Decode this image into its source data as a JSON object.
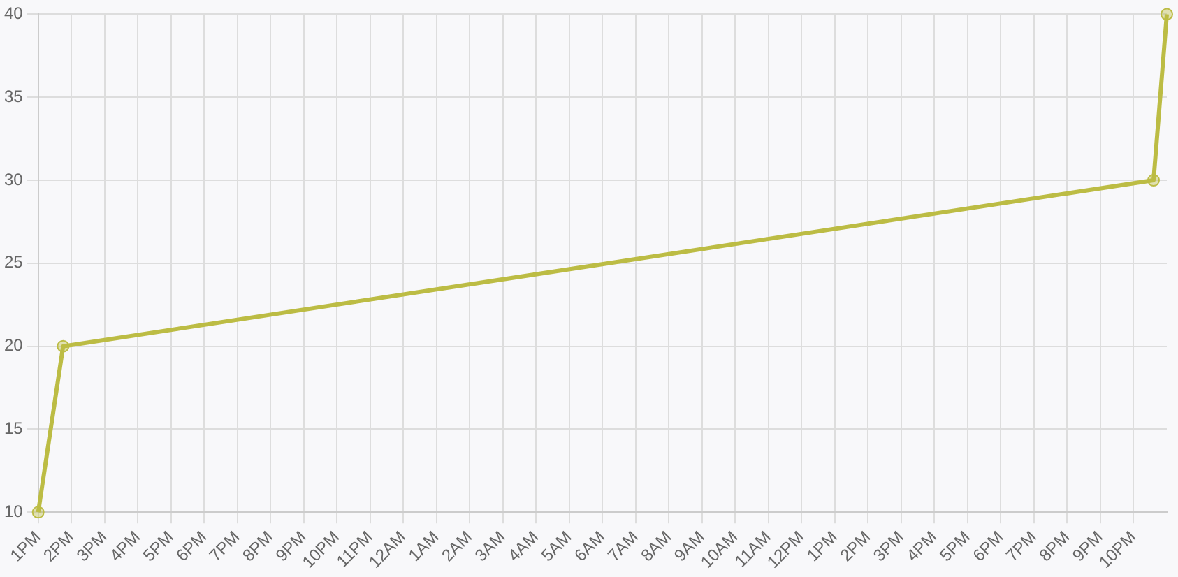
{
  "chart_data": {
    "type": "line",
    "series": [
      {
        "color": "#bcbc44",
        "x": [
          "--01-01T13:00",
          "--01-01T13:45",
          "--01-02T22:36",
          "--01-02T23:00"
        ],
        "values": [
          10,
          20,
          30,
          40
        ]
      }
    ],
    "xlim": [
      "--01-01T13:00",
      "--01-02T23:00"
    ],
    "xticks": [
      {
        "value": "--01-01T13:00",
        "label": "1PM"
      },
      {
        "value": "--01-01T14:00",
        "label": "2PM"
      },
      {
        "value": "--01-01T15:00",
        "label": "3PM"
      },
      {
        "value": "--01-01T16:00",
        "label": "4PM"
      },
      {
        "value": "--01-01T17:00",
        "label": "5PM"
      },
      {
        "value": "--01-01T18:00",
        "label": "6PM"
      },
      {
        "value": "--01-01T19:00",
        "label": "7PM"
      },
      {
        "value": "--01-01T20:00",
        "label": "8PM"
      },
      {
        "value": "--01-01T21:00",
        "label": "9PM"
      },
      {
        "value": "--01-01T22:00",
        "label": "10PM"
      },
      {
        "value": "--01-01T23:00",
        "label": "11PM"
      },
      {
        "value": "--01-02T00:00",
        "label": "12AM"
      },
      {
        "value": "--01-02T01:00",
        "label": "1AM"
      },
      {
        "value": "--01-02T02:00",
        "label": "2AM"
      },
      {
        "value": "--01-02T03:00",
        "label": "3AM"
      },
      {
        "value": "--01-02T04:00",
        "label": "4AM"
      },
      {
        "value": "--01-02T05:00",
        "label": "5AM"
      },
      {
        "value": "--01-02T06:00",
        "label": "6AM"
      },
      {
        "value": "--01-02T07:00",
        "label": "7AM"
      },
      {
        "value": "--01-02T08:00",
        "label": "8AM"
      },
      {
        "value": "--01-02T09:00",
        "label": "9AM"
      },
      {
        "value": "--01-02T10:00",
        "label": "10AM"
      },
      {
        "value": "--01-02T11:00",
        "label": "11AM"
      },
      {
        "value": "--01-02T12:00",
        "label": "12PM"
      },
      {
        "value": "--01-02T13:00",
        "label": "1PM"
      },
      {
        "value": "--01-02T14:00",
        "label": "2PM"
      },
      {
        "value": "--01-02T15:00",
        "label": "3PM"
      },
      {
        "value": "--01-02T16:00",
        "label": "4PM"
      },
      {
        "value": "--01-02T17:00",
        "label": "5PM"
      },
      {
        "value": "--01-02T18:00",
        "label": "6PM"
      },
      {
        "value": "--01-02T19:00",
        "label": "7PM"
      },
      {
        "value": "--01-02T20:00",
        "label": "8PM"
      },
      {
        "value": "--01-02T21:00",
        "label": "9PM"
      },
      {
        "value": "--01-02T22:00",
        "label": "10PM"
      }
    ],
    "ylim": [
      10,
      40
    ],
    "yticks": [
      10,
      15,
      20,
      25,
      30,
      35,
      40
    ],
    "grid": true,
    "legend": false,
    "marker": "circle",
    "line_style": "solid"
  }
}
